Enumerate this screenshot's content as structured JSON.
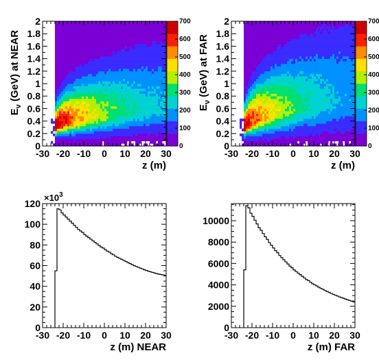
{
  "chart_data": [
    {
      "type": "heatmap",
      "panel": "top-left",
      "xlabel": "z (m)",
      "ylabel": "Eν (GeV) at NEAR",
      "ylabel_parts": {
        "e": "E",
        "sub": "ν",
        "rest": " (GeV) at NEAR"
      },
      "xlim": [
        -30,
        30
      ],
      "ylim": [
        0,
        2
      ],
      "xticks": [
        "-30",
        "-20",
        "-10",
        "0",
        "10",
        "20",
        "30"
      ],
      "yticks": [
        "0",
        "0.2",
        "0.4",
        "0.6",
        "0.8",
        "1",
        "1.2",
        "1.4",
        "1.6",
        "1.8",
        "2"
      ],
      "zlim": [
        0,
        700
      ],
      "zticks": [
        "0",
        "100",
        "200",
        "300",
        "400",
        "500",
        "600",
        "700"
      ],
      "z_start": -24,
      "band": {
        "peak_e_at_start": 0.28,
        "peak_e_at_end": 0.62,
        "width": 0.55,
        "peak_z": 700,
        "tail_z": 120
      },
      "colors": [
        "#ffffff",
        "#7a00d6",
        "#3a2bff",
        "#0090ff",
        "#00d2d2",
        "#00e070",
        "#b4f000",
        "#ffe000",
        "#ff8c00",
        "#ff2000",
        "#d00000"
      ]
    },
    {
      "type": "heatmap",
      "panel": "top-right",
      "xlabel": "z (m)",
      "ylabel": "Eν (GeV) at FAR",
      "ylabel_parts": {
        "e": "E",
        "sub": "ν",
        "rest": " (GeV) at FAR"
      },
      "xlim": [
        -30,
        30
      ],
      "ylim": [
        0,
        2
      ],
      "xticks": [
        "-30",
        "-20",
        "-10",
        "0",
        "10",
        "20",
        "30"
      ],
      "yticks": [
        "0",
        "0.2",
        "0.4",
        "0.6",
        "0.8",
        "1",
        "1.2",
        "1.4",
        "1.6",
        "1.8",
        "2"
      ],
      "zlim": [
        0,
        700
      ],
      "zticks": [
        "0",
        "100",
        "200",
        "300",
        "400",
        "500",
        "600",
        "700"
      ],
      "z_start": -24,
      "band": {
        "peak_e_at_start": 0.26,
        "peak_e_at_end": 0.75,
        "width": 0.75,
        "peak_z": 650,
        "tail_z": 90
      },
      "colors": [
        "#ffffff",
        "#7a00d6",
        "#3a2bff",
        "#0090ff",
        "#00d2d2",
        "#00e070",
        "#b4f000",
        "#ffe000",
        "#ff8c00",
        "#ff2000",
        "#d00000"
      ]
    },
    {
      "type": "histogram",
      "panel": "bottom-left",
      "xlabel": "z (m) NEAR",
      "ylabel": "",
      "exponent_label": "×10",
      "exponent_power": "3",
      "xlim": [
        -30,
        30
      ],
      "ylim": [
        0,
        120
      ],
      "xticks": [
        "-30",
        "-20",
        "-10",
        "0",
        "10",
        "20",
        "30"
      ],
      "yticks": [
        "0",
        "20",
        "40",
        "60",
        "80",
        "100",
        "120"
      ],
      "bin_width": 1,
      "bins": [
        {
          "x": -24,
          "y": 0
        },
        {
          "x": -24,
          "y": 55
        },
        {
          "x": -23,
          "y": 115
        },
        {
          "x": -22,
          "y": 114
        },
        {
          "x": -21,
          "y": 111
        },
        {
          "x": -20,
          "y": 109
        },
        {
          "x": -19,
          "y": 107
        },
        {
          "x": -18,
          "y": 105
        },
        {
          "x": -17,
          "y": 103
        },
        {
          "x": -16,
          "y": 101
        },
        {
          "x": -15,
          "y": 99
        },
        {
          "x": -14,
          "y": 97
        },
        {
          "x": -13,
          "y": 95
        },
        {
          "x": -12,
          "y": 93.5
        },
        {
          "x": -11,
          "y": 92
        },
        {
          "x": -10,
          "y": 90
        },
        {
          "x": -9,
          "y": 88.5
        },
        {
          "x": -8,
          "y": 87
        },
        {
          "x": -7,
          "y": 85.5
        },
        {
          "x": -6,
          "y": 84
        },
        {
          "x": -5,
          "y": 82.5
        },
        {
          "x": -4,
          "y": 81
        },
        {
          "x": -3,
          "y": 79.5
        },
        {
          "x": -2,
          "y": 78
        },
        {
          "x": -1,
          "y": 77
        },
        {
          "x": 0,
          "y": 75.5
        },
        {
          "x": 1,
          "y": 74
        },
        {
          "x": 2,
          "y": 73
        },
        {
          "x": 3,
          "y": 71.5
        },
        {
          "x": 4,
          "y": 70.5
        },
        {
          "x": 5,
          "y": 69
        },
        {
          "x": 6,
          "y": 68
        },
        {
          "x": 7,
          "y": 67
        },
        {
          "x": 8,
          "y": 66
        },
        {
          "x": 9,
          "y": 65
        },
        {
          "x": 10,
          "y": 64
        },
        {
          "x": 11,
          "y": 63
        },
        {
          "x": 12,
          "y": 62
        },
        {
          "x": 13,
          "y": 61
        },
        {
          "x": 14,
          "y": 60
        },
        {
          "x": 15,
          "y": 59.2
        },
        {
          "x": 16,
          "y": 58.4
        },
        {
          "x": 17,
          "y": 57.6
        },
        {
          "x": 18,
          "y": 56.8
        },
        {
          "x": 19,
          "y": 56
        },
        {
          "x": 20,
          "y": 55.3
        },
        {
          "x": 21,
          "y": 54.6
        },
        {
          "x": 22,
          "y": 54
        },
        {
          "x": 23,
          "y": 53.4
        },
        {
          "x": 24,
          "y": 52.8
        },
        {
          "x": 25,
          "y": 52.3
        },
        {
          "x": 26,
          "y": 51.8
        },
        {
          "x": 27,
          "y": 51.4
        },
        {
          "x": 28,
          "y": 51
        },
        {
          "x": 29,
          "y": 50.7
        }
      ]
    },
    {
      "type": "histogram",
      "panel": "bottom-right",
      "xlabel": "z (m) FAR",
      "ylabel": "",
      "xlim": [
        -30,
        30
      ],
      "ylim": [
        0,
        11600
      ],
      "xticks": [
        "-30",
        "-20",
        "-10",
        "0",
        "10",
        "20",
        "30"
      ],
      "yticks": [
        "0",
        "2000",
        "4000",
        "6000",
        "8000",
        "10000"
      ],
      "bin_width": 1,
      "bins": [
        {
          "x": -24,
          "y": 0
        },
        {
          "x": -24,
          "y": 5400
        },
        {
          "x": -23,
          "y": 11400
        },
        {
          "x": -22,
          "y": 11200
        },
        {
          "x": -21,
          "y": 10700
        },
        {
          "x": -20,
          "y": 10400
        },
        {
          "x": -19,
          "y": 10050
        },
        {
          "x": -18,
          "y": 9700
        },
        {
          "x": -17,
          "y": 9350
        },
        {
          "x": -16,
          "y": 9100
        },
        {
          "x": -15,
          "y": 8800
        },
        {
          "x": -14,
          "y": 8500
        },
        {
          "x": -13,
          "y": 8250
        },
        {
          "x": -12,
          "y": 7950
        },
        {
          "x": -11,
          "y": 7700
        },
        {
          "x": -10,
          "y": 7450
        },
        {
          "x": -9,
          "y": 7200
        },
        {
          "x": -8,
          "y": 7000
        },
        {
          "x": -7,
          "y": 6750
        },
        {
          "x": -6,
          "y": 6550
        },
        {
          "x": -5,
          "y": 6350
        },
        {
          "x": -4,
          "y": 6150
        },
        {
          "x": -3,
          "y": 5950
        },
        {
          "x": -2,
          "y": 5750
        },
        {
          "x": -1,
          "y": 5600
        },
        {
          "x": 0,
          "y": 5400
        },
        {
          "x": 1,
          "y": 5250
        },
        {
          "x": 2,
          "y": 5100
        },
        {
          "x": 3,
          "y": 4950
        },
        {
          "x": 4,
          "y": 4800
        },
        {
          "x": 5,
          "y": 4650
        },
        {
          "x": 6,
          "y": 4500
        },
        {
          "x": 7,
          "y": 4400
        },
        {
          "x": 8,
          "y": 4250
        },
        {
          "x": 9,
          "y": 4100
        },
        {
          "x": 10,
          "y": 4000
        },
        {
          "x": 11,
          "y": 3900
        },
        {
          "x": 12,
          "y": 3780
        },
        {
          "x": 13,
          "y": 3680
        },
        {
          "x": 14,
          "y": 3580
        },
        {
          "x": 15,
          "y": 3480
        },
        {
          "x": 16,
          "y": 3380
        },
        {
          "x": 17,
          "y": 3300
        },
        {
          "x": 18,
          "y": 3200
        },
        {
          "x": 19,
          "y": 3120
        },
        {
          "x": 20,
          "y": 3040
        },
        {
          "x": 21,
          "y": 2960
        },
        {
          "x": 22,
          "y": 2880
        },
        {
          "x": 23,
          "y": 2810
        },
        {
          "x": 24,
          "y": 2740
        },
        {
          "x": 25,
          "y": 2670
        },
        {
          "x": 26,
          "y": 2600
        },
        {
          "x": 27,
          "y": 2540
        },
        {
          "x": 28,
          "y": 2470
        },
        {
          "x": 29,
          "y": 2400
        }
      ]
    }
  ]
}
